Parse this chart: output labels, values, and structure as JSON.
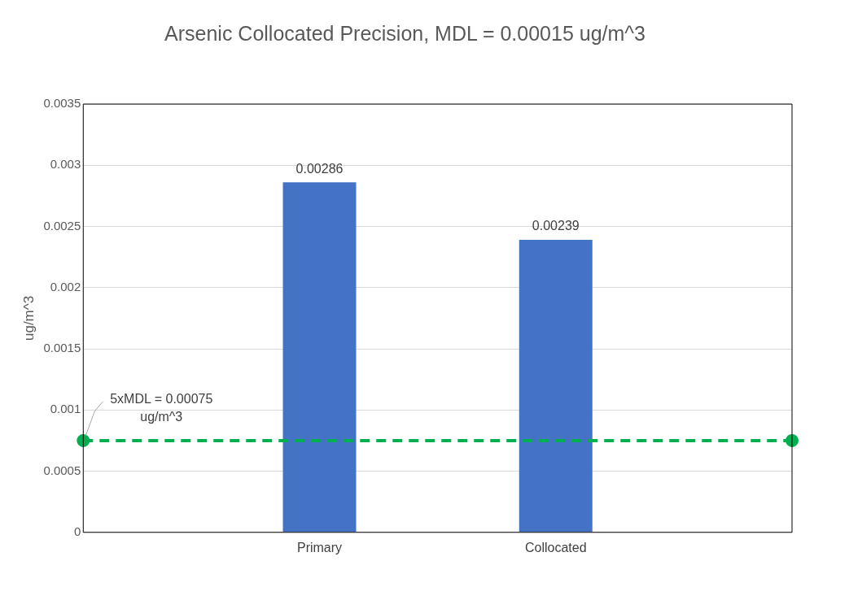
{
  "chart_data": {
    "type": "bar",
    "title": "Arsenic Collocated Precision, MDL = 0.00015 ug/m^3",
    "ylabel": "ug/m^3",
    "categories": [
      null,
      "Primary",
      "Collocated",
      null
    ],
    "series": [
      {
        "color": "#4472c4",
        "values": [
          null,
          0.00286,
          0.00239,
          null
        ],
        "value_labels": [
          null,
          "0.00286",
          "0.00239",
          null
        ]
      },
      {
        "type": "line",
        "color": "#00b050",
        "values": [
          0.00075,
          null,
          null,
          0.00075
        ],
        "marker": "circle",
        "line_style": "dashed",
        "value_labels": [
          "5xMDL = 0.00075 ug/m^3",
          null,
          null,
          null
        ]
      }
    ],
    "ylim": [
      0,
      0.0035
    ],
    "yticks": [
      0,
      0.0005,
      0.001,
      0.0015,
      0.002,
      0.0025,
      0.003,
      0.0035
    ],
    "grid": "y"
  }
}
